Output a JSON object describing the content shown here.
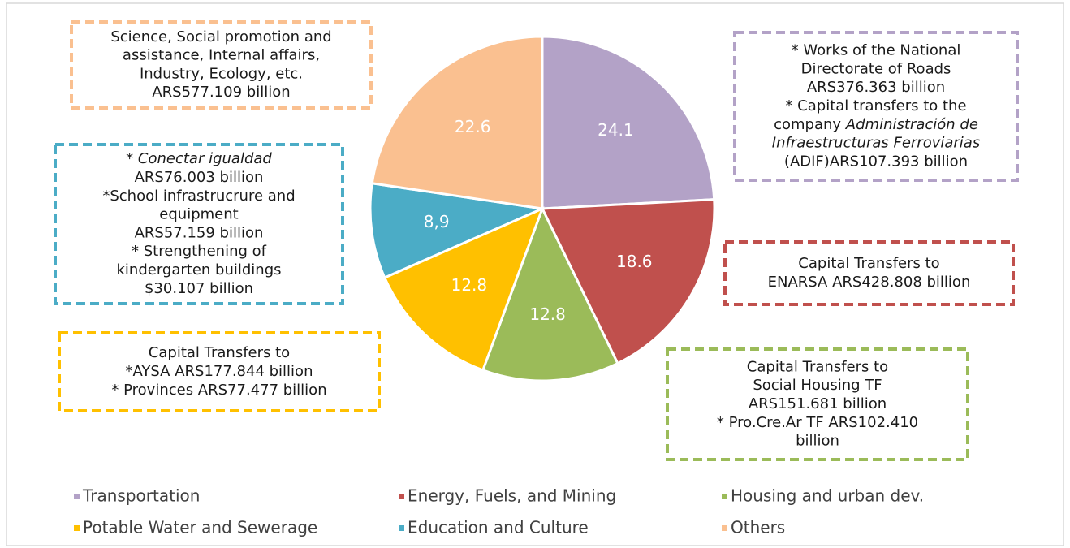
{
  "chart_data": {
    "type": "pie",
    "categories": [
      "Transportation",
      "Energy, Fuels, and Mining",
      "Housing and urban dev.",
      "Potable Water and Sewerage",
      "Education and Culture",
      "Others"
    ],
    "values": [
      24.1,
      18.6,
      12.8,
      12.8,
      8.9,
      22.6
    ],
    "value_labels": [
      "24.1",
      "18.6",
      "12.8",
      "12.8",
      "8,9",
      "22.6"
    ],
    "colors": [
      "#b3a2c7",
      "#c0504d",
      "#9bbb59",
      "#ffc000",
      "#4bacc6",
      "#fac090"
    ],
    "annotations": [
      {
        "lines": [
          [
            "* Works of the National"
          ],
          [
            "Directorate of Roads"
          ],
          [
            "ARS376.363 billion"
          ],
          [
            "* Capital transfers to the"
          ],
          [
            "company ",
            {
              "text": "Administración de",
              "italic": true
            }
          ],
          [
            {
              "text": "Infraestructuras Ferroviarias",
              "italic": true
            }
          ],
          [
            "(ADIF)ARS107.393 billion"
          ]
        ]
      },
      {
        "lines": [
          [
            "Capital Transfers to"
          ],
          [
            "ENARSA ARS428.808 billion"
          ]
        ]
      },
      {
        "lines": [
          [
            "Capital Transfers to"
          ],
          [
            "Social Housing TF"
          ],
          [
            "ARS151.681 billion"
          ],
          [
            "* Pro.Cre.Ar TF ARS102.410"
          ],
          [
            "billion"
          ]
        ]
      },
      {
        "lines": [
          [
            "Capital Transfers to"
          ],
          [
            "*AYSA ARS177.844 billion"
          ],
          [
            "* Provinces ARS77.477 billion"
          ]
        ]
      },
      {
        "lines": [
          [
            "* ",
            {
              "text": "Conectar igualdad",
              "italic": true
            }
          ],
          [
            "ARS76.003 billion"
          ],
          [
            "*School infrastrucrure and"
          ],
          [
            "equipment"
          ],
          [
            "ARS57.159 billion"
          ],
          [
            "* Strengthening of"
          ],
          [
            "kindergarten buildings"
          ],
          [
            "$30.107 billion"
          ]
        ]
      },
      {
        "lines": [
          [
            "Science, Social promotion and"
          ],
          [
            "assistance, Internal affairs,"
          ],
          [
            "Industry, Ecology, etc."
          ],
          [
            "ARS577.109 billion"
          ]
        ]
      }
    ]
  }
}
